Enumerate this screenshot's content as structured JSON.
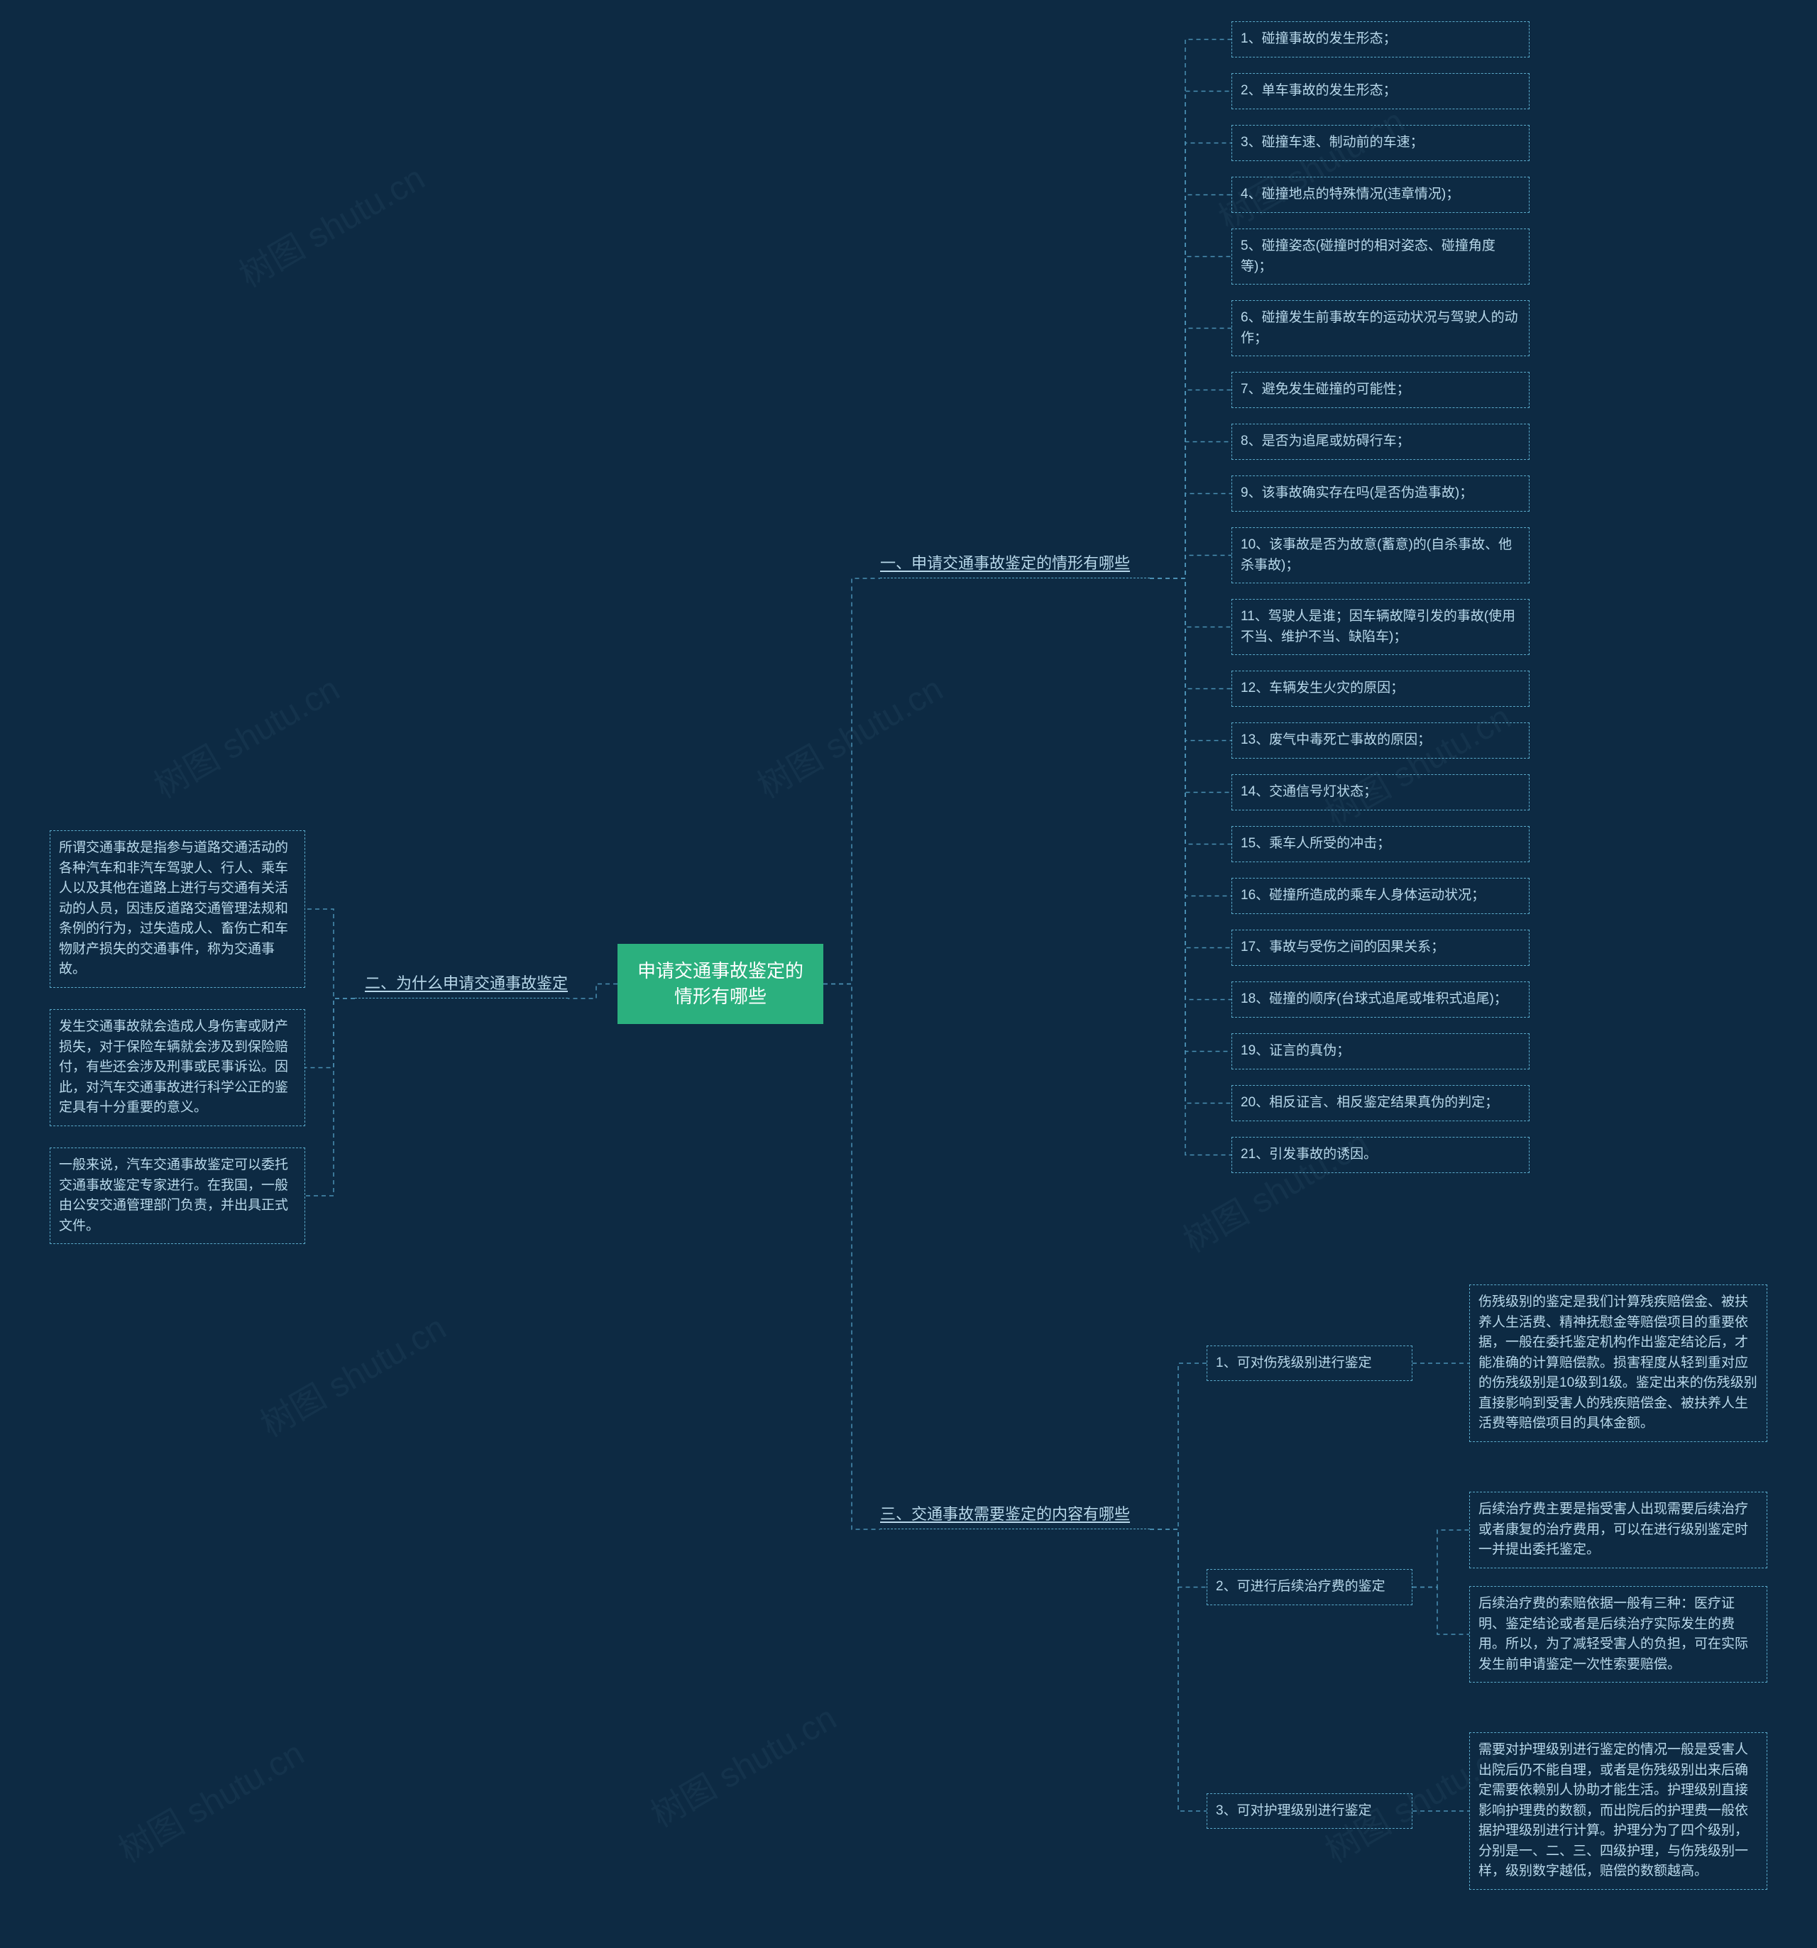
{
  "colors": {
    "background": "#0d2a43",
    "root_bg": "#2bb07e",
    "root_text": "#ffffff",
    "node_border": "#5aa9c9",
    "node_text": "#b8d8ea",
    "connector": "#4a8fb3",
    "watermark": "rgba(120,160,190,0.08)"
  },
  "watermark_text": "树图 shutu.cn",
  "root": {
    "label": "申请交通事故鉴定的情形有哪些"
  },
  "branch1": {
    "label": "一、申请交通事故鉴定的情形有哪些",
    "items": [
      "1、碰撞事故的发生形态；",
      "2、单车事故的发生形态；",
      "3、碰撞车速、制动前的车速；",
      "4、碰撞地点的特殊情况(违章情况)；",
      "5、碰撞姿态(碰撞时的相对姿态、碰撞角度等)；",
      "6、碰撞发生前事故车的运动状况与驾驶人的动作；",
      "7、避免发生碰撞的可能性；",
      "8、是否为追尾或妨碍行车；",
      "9、该事故确实存在吗(是否伪造事故)；",
      "10、该事故是否为故意(蓄意)的(自杀事故、他杀事故)；",
      "11、驾驶人是谁；因车辆故障引发的事故(使用不当、维护不当、缺陷车)；",
      "12、车辆发生火灾的原因；",
      "13、废气中毒死亡事故的原因；",
      "14、交通信号灯状态；",
      "15、乘车人所受的冲击；",
      "16、碰撞所造成的乘车人身体运动状况；",
      "17、事故与受伤之间的因果关系；",
      "18、碰撞的顺序(台球式追尾或堆积式追尾)；",
      "19、证言的真伪；",
      "20、相反证言、相反鉴定结果真伪的判定；",
      "21、引发事故的诱因。"
    ]
  },
  "branch2": {
    "label": "二、为什么申请交通事故鉴定",
    "items": [
      "所谓交通事故是指参与道路交通活动的各种汽车和非汽车驾驶人、行人、乘车人以及其他在道路上进行与交通有关活动的人员，因违反道路交通管理法规和条例的行为，过失造成人、畜伤亡和车物财产损失的交通事件，称为交通事故。",
      "发生交通事故就会造成人身伤害或财产损失，对于保险车辆就会涉及到保险赔付，有些还会涉及刑事或民事诉讼。因此，对汽车交通事故进行科学公正的鉴定具有十分重要的意义。",
      "一般来说，汽车交通事故鉴定可以委托交通事故鉴定专家进行。在我国，一般由公安交通管理部门负责，并出具正式文件。"
    ]
  },
  "branch3": {
    "label": "三、交通事故需要鉴定的内容有哪些",
    "items": [
      {
        "label": "1、可对伤残级别进行鉴定",
        "children": [
          "伤残级别的鉴定是我们计算残疾赔偿金、被扶养人生活费、精神抚慰金等赔偿项目的重要依据，一般在委托鉴定机构作出鉴定结论后，才能准确的计算赔偿款。损害程度从轻到重对应的伤残级别是10级到1级。鉴定出来的伤残级别直接影响到受害人的残疾赔偿金、被扶养人生活费等赔偿项目的具体金额。"
        ]
      },
      {
        "label": "2、可进行后续治疗费的鉴定",
        "children": [
          "后续治疗费主要是指受害人出现需要后续治疗或者康复的治疗费用，可以在进行级别鉴定时一并提出委托鉴定。",
          "后续治疗费的索赔依据一般有三种：医疗证明、鉴定结论或者是后续治疗实际发生的费用。所以，为了减轻受害人的负担，可在实际发生前申请鉴定一次性索要赔偿。"
        ]
      },
      {
        "label": "3、可对护理级别进行鉴定",
        "children": [
          "需要对护理级别进行鉴定的情况一般是受害人出院后仍不能自理，或者是伤残级别出来后确定需要依赖别人协助才能生活。护理级别直接影响护理费的数额，而出院后的护理费一般依据护理级别进行计算。护理分为了四个级别，分别是一、二、三、四级护理，与伤残级别一样，级别数字越低，赔偿的数额越高。"
        ]
      }
    ]
  }
}
